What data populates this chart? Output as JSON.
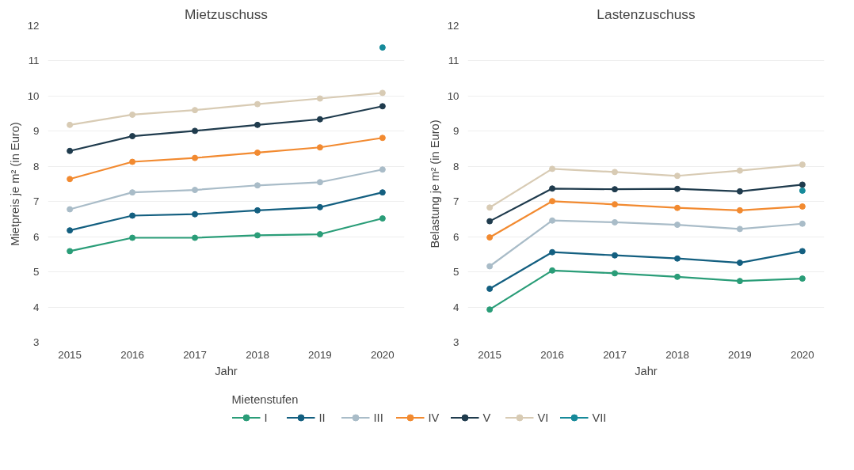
{
  "chart_data": [
    {
      "type": "line",
      "title": "Mietzuschuss",
      "xlabel": "Jahr",
      "ylabel": "Mietpreis je m² (in Euro)",
      "legend_title": "Mietenstufen",
      "legend": "bottom",
      "grid": "y",
      "marker": "circle",
      "line_style": "solid",
      "x": [
        2015,
        2016,
        2017,
        2018,
        2019,
        2020
      ],
      "xlim": [
        2014.65,
        2020.35
      ],
      "xticks": [
        2015,
        2016,
        2017,
        2018,
        2019,
        2020
      ],
      "ylim": [
        3,
        12
      ],
      "yticks": [
        3,
        4,
        5,
        6,
        7,
        8,
        9,
        10,
        11,
        12
      ],
      "series": [
        {
          "name": "I",
          "color": "#2a9d78",
          "values": [
            5.59,
            5.97,
            5.97,
            6.04,
            6.07,
            6.52
          ]
        },
        {
          "name": "II",
          "color": "#135f80",
          "values": [
            6.18,
            6.6,
            6.64,
            6.75,
            6.84,
            7.26
          ]
        },
        {
          "name": "III",
          "color": "#a9bcc8",
          "values": [
            6.78,
            7.26,
            7.33,
            7.46,
            7.55,
            7.91
          ]
        },
        {
          "name": "IV",
          "color": "#f28a30",
          "values": [
            7.64,
            8.13,
            8.24,
            8.39,
            8.54,
            8.81
          ]
        },
        {
          "name": "V",
          "color": "#1f3b4d",
          "values": [
            8.44,
            8.86,
            9.01,
            9.18,
            9.34,
            9.71
          ]
        },
        {
          "name": "VI",
          "color": "#d8cbb4",
          "values": [
            9.18,
            9.47,
            9.6,
            9.77,
            9.93,
            10.09
          ]
        },
        {
          "name": "VII",
          "color": "#168a9a",
          "values": [
            null,
            null,
            null,
            null,
            null,
            11.38
          ]
        }
      ]
    },
    {
      "type": "line",
      "title": "Lastenzuschuss",
      "xlabel": "Jahr",
      "ylabel": "Belastung je m² (in Euro)",
      "grid": "y",
      "marker": "circle",
      "line_style": "solid",
      "x": [
        2015,
        2016,
        2017,
        2018,
        2019,
        2020
      ],
      "xlim": [
        2014.65,
        2020.35
      ],
      "xticks": [
        2015,
        2016,
        2017,
        2018,
        2019,
        2020
      ],
      "ylim": [
        3,
        12
      ],
      "yticks": [
        3,
        4,
        5,
        6,
        7,
        8,
        9,
        10,
        11,
        12
      ],
      "series": [
        {
          "color": "#2a9d78",
          "values": [
            3.93,
            5.04,
            4.96,
            4.86,
            4.74,
            4.81
          ]
        },
        {
          "color": "#135f80",
          "values": [
            4.52,
            5.56,
            5.47,
            5.38,
            5.26,
            5.59
          ]
        },
        {
          "color": "#a9bcc8",
          "values": [
            5.16,
            6.46,
            6.41,
            6.34,
            6.22,
            6.37
          ]
        },
        {
          "color": "#f28a30",
          "values": [
            5.98,
            7.01,
            6.92,
            6.82,
            6.75,
            6.86
          ]
        },
        {
          "color": "#1f3b4d",
          "values": [
            6.44,
            7.37,
            7.35,
            7.36,
            7.29,
            7.48
          ]
        },
        {
          "color": "#d8cbb4",
          "values": [
            6.83,
            7.93,
            7.84,
            7.73,
            7.88,
            8.05
          ]
        },
        {
          "color": "#168a9a",
          "values": [
            null,
            null,
            null,
            null,
            null,
            7.31
          ]
        }
      ]
    }
  ]
}
